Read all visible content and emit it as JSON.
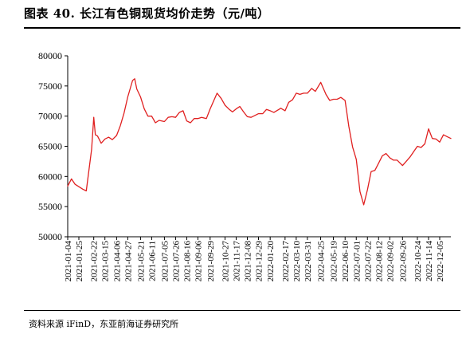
{
  "figure": {
    "title": "图表 40. 长江有色铜现货均价走势（元/吨）",
    "source": "资料来源 iFinD，东亚前海证券研究所"
  },
  "chart_data": {
    "type": "line",
    "title": "图表 40. 长江有色铜现货均价走势（元/吨）",
    "ylim": [
      50000,
      80000
    ],
    "yticks": [
      50000,
      55000,
      60000,
      65000,
      70000,
      75000,
      80000
    ],
    "grid": false,
    "legend": "none",
    "line_color": "#e02020",
    "xticks": [
      "2021-01-04",
      "2021-01-25",
      "2021-02-22",
      "2021-03-15",
      "2021-04-06",
      "2021-04-27",
      "2021-05-21",
      "2021-06-11",
      "2021-07-05",
      "2021-07-26",
      "2021-08-16",
      "2021-09-06",
      "2021-09-29",
      "2021-10-27",
      "2021-11-17",
      "2021-12-08",
      "2021-12-29",
      "2022-01-20",
      "2022-02-17",
      "2022-03-10",
      "2022-03-31",
      "2022-04-25",
      "2022-05-19",
      "2022-06-10",
      "2022-07-01",
      "2022-07-22",
      "2022-08-12",
      "2022-09-02",
      "2022-09-26",
      "2022-10-24",
      "2022-11-14",
      "2022-12-05"
    ],
    "x": [
      "2021-01-04",
      "2021-01-11",
      "2021-01-18",
      "2021-01-25",
      "2021-02-01",
      "2021-02-08",
      "2021-02-18",
      "2021-02-22",
      "2021-02-25",
      "2021-03-01",
      "2021-03-08",
      "2021-03-15",
      "2021-03-22",
      "2021-03-29",
      "2021-04-06",
      "2021-04-13",
      "2021-04-20",
      "2021-04-27",
      "2021-05-06",
      "2021-05-10",
      "2021-05-14",
      "2021-05-21",
      "2021-05-28",
      "2021-06-04",
      "2021-06-11",
      "2021-06-18",
      "2021-06-25",
      "2021-07-05",
      "2021-07-12",
      "2021-07-19",
      "2021-07-26",
      "2021-08-02",
      "2021-08-09",
      "2021-08-16",
      "2021-08-23",
      "2021-08-30",
      "2021-09-06",
      "2021-09-13",
      "2021-09-22",
      "2021-09-29",
      "2021-10-12",
      "2021-10-20",
      "2021-10-27",
      "2021-11-03",
      "2021-11-10",
      "2021-11-17",
      "2021-11-24",
      "2021-12-01",
      "2021-12-08",
      "2021-12-15",
      "2021-12-22",
      "2021-12-29",
      "2022-01-06",
      "2022-01-13",
      "2022-01-20",
      "2022-01-27",
      "2022-02-09",
      "2022-02-17",
      "2022-02-24",
      "2022-03-03",
      "2022-03-10",
      "2022-03-17",
      "2022-03-24",
      "2022-03-31",
      "2022-04-08",
      "2022-04-15",
      "2022-04-25",
      "2022-05-05",
      "2022-05-12",
      "2022-05-19",
      "2022-05-26",
      "2022-06-02",
      "2022-06-10",
      "2022-06-17",
      "2022-06-24",
      "2022-07-01",
      "2022-07-08",
      "2022-07-15",
      "2022-07-22",
      "2022-07-29",
      "2022-08-05",
      "2022-08-12",
      "2022-08-19",
      "2022-08-26",
      "2022-09-02",
      "2022-09-09",
      "2022-09-16",
      "2022-09-26",
      "2022-10-10",
      "2022-10-17",
      "2022-10-24",
      "2022-10-31",
      "2022-11-07",
      "2022-11-14",
      "2022-11-21",
      "2022-11-28",
      "2022-12-05",
      "2022-12-12",
      "2022-12-19",
      "2022-12-26"
    ],
    "series": [
      {
        "values": [
          58400,
          59600,
          58700,
          58300,
          57900,
          57600,
          64500,
          69800,
          66900,
          66700,
          65500,
          66200,
          66500,
          66100,
          66800,
          68400,
          70500,
          73200,
          75900,
          76200,
          74500,
          73200,
          71200,
          70000,
          70000,
          68900,
          69300,
          69100,
          69800,
          69900,
          69800,
          70600,
          70900,
          69200,
          68900,
          69600,
          69600,
          69800,
          69600,
          71200,
          73800,
          72900,
          71800,
          71200,
          70700,
          71200,
          71600,
          70700,
          69900,
          69800,
          70100,
          70400,
          70400,
          71100,
          70900,
          70600,
          71300,
          70900,
          72300,
          72700,
          73800,
          73600,
          73800,
          73800,
          74600,
          74100,
          75600,
          73600,
          72600,
          72800,
          72800,
          73100,
          72600,
          68300,
          64900,
          62800,
          57500,
          55300,
          57800,
          60800,
          61000,
          62200,
          63400,
          63800,
          63100,
          62700,
          62700,
          61800,
          63200,
          64100,
          65000,
          64800,
          65400,
          67900,
          66300,
          66200,
          65700,
          66900,
          66600,
          66300
        ]
      }
    ]
  }
}
